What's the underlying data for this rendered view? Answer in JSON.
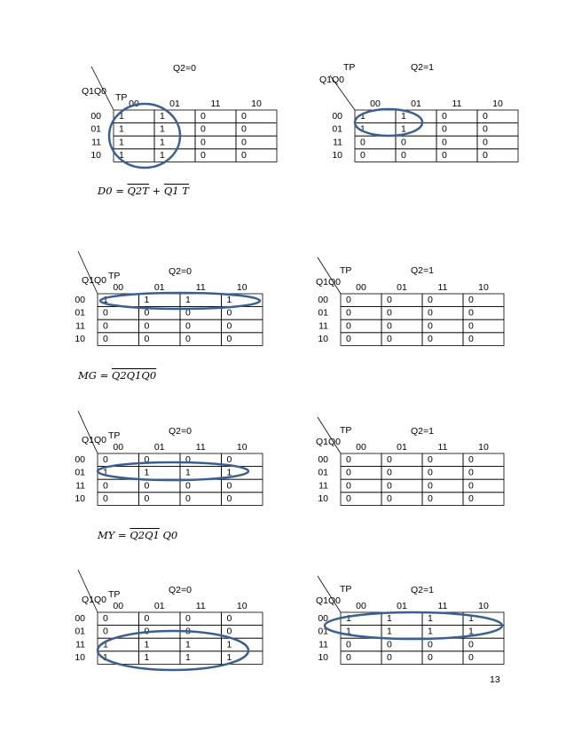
{
  "maps": [
    {
      "q2": "Q2=0",
      "tp": "TP",
      "q1q0": "Q1Q0",
      "cols": [
        "00",
        "01",
        "11",
        "10"
      ],
      "rows": [
        "00",
        "01",
        "11",
        "10"
      ],
      "cells": [
        [
          1,
          1,
          0,
          0
        ],
        [
          1,
          1,
          0,
          0
        ],
        [
          1,
          1,
          0,
          0
        ],
        [
          1,
          1,
          0,
          0
        ]
      ]
    },
    {
      "q2": "Q2=1",
      "tp": "TP",
      "q1q0": "Q1Q0",
      "cols": [
        "00",
        "01",
        "11",
        "10"
      ],
      "rows": [
        "00",
        "01",
        "11",
        "10"
      ],
      "cells": [
        [
          1,
          1,
          0,
          0
        ],
        [
          1,
          1,
          0,
          0
        ],
        [
          0,
          0,
          0,
          0
        ],
        [
          0,
          0,
          0,
          0
        ]
      ]
    },
    {
      "q2": "Q2=0",
      "tp": "TP",
      "q1q0": "Q1Q0",
      "cols": [
        "00",
        "01",
        "11",
        "10"
      ],
      "rows": [
        "00",
        "01",
        "11",
        "10"
      ],
      "cells": [
        [
          1,
          1,
          1,
          1
        ],
        [
          0,
          0,
          0,
          0
        ],
        [
          0,
          0,
          0,
          0
        ],
        [
          0,
          0,
          0,
          0
        ]
      ]
    },
    {
      "q2": "Q2=1",
      "tp": "TP",
      "q1q0": "Q1Q0",
      "cols": [
        "00",
        "01",
        "11",
        "10"
      ],
      "rows": [
        "00",
        "01",
        "11",
        "10"
      ],
      "cells": [
        [
          0,
          0,
          0,
          0
        ],
        [
          0,
          0,
          0,
          0
        ],
        [
          0,
          0,
          0,
          0
        ],
        [
          0,
          0,
          0,
          0
        ]
      ]
    },
    {
      "q2": "Q2=0",
      "tp": "TP",
      "q1q0": "Q1Q0",
      "cols": [
        "00",
        "01",
        "11",
        "10"
      ],
      "rows": [
        "00",
        "01",
        "11",
        "10"
      ],
      "cells": [
        [
          0,
          0,
          0,
          0
        ],
        [
          1,
          1,
          1,
          1
        ],
        [
          0,
          0,
          0,
          0
        ],
        [
          0,
          0,
          0,
          0
        ]
      ]
    },
    {
      "q2": "Q2=1",
      "tp": "TP",
      "q1q0": "Q1Q0",
      "cols": [
        "00",
        "01",
        "11",
        "10"
      ],
      "rows": [
        "00",
        "01",
        "11",
        "10"
      ],
      "cells": [
        [
          0,
          0,
          0,
          0
        ],
        [
          0,
          0,
          0,
          0
        ],
        [
          0,
          0,
          0,
          0
        ],
        [
          0,
          0,
          0,
          0
        ]
      ]
    },
    {
      "q2": "Q2=0",
      "tp": "TP",
      "q1q0": "Q1Q0",
      "cols": [
        "00",
        "01",
        "11",
        "10"
      ],
      "rows": [
        "00",
        "01",
        "11",
        "10"
      ],
      "cells": [
        [
          0,
          0,
          0,
          0
        ],
        [
          0,
          0,
          0,
          0
        ],
        [
          1,
          1,
          1,
          1
        ],
        [
          1,
          1,
          1,
          1
        ]
      ]
    },
    {
      "q2": "Q2=1",
      "tp": "TP",
      "q1q0": "Q1Q0",
      "cols": [
        "00",
        "01",
        "11",
        "10"
      ],
      "rows": [
        "00",
        "01",
        "11",
        "10"
      ],
      "cells": [
        [
          1,
          1,
          1,
          1
        ],
        [
          1,
          1,
          1,
          1
        ],
        [
          0,
          0,
          0,
          0
        ],
        [
          0,
          0,
          0,
          0
        ]
      ]
    }
  ],
  "equations": [
    {
      "parts": [
        {
          "text": "D0 = "
        },
        {
          "text": "Q2T",
          "overline": true
        },
        {
          "text": " + "
        },
        {
          "text": "Q1 T",
          "overline": true
        }
      ]
    },
    {
      "parts": [
        {
          "text": "MG = "
        },
        {
          "text": "Q2Q1Q0",
          "overline": true
        }
      ]
    },
    {
      "parts": [
        {
          "text": "MY = "
        },
        {
          "text": "Q2Q1",
          "overline": true
        },
        {
          "text": " Q0"
        }
      ]
    }
  ],
  "page_number": "13"
}
